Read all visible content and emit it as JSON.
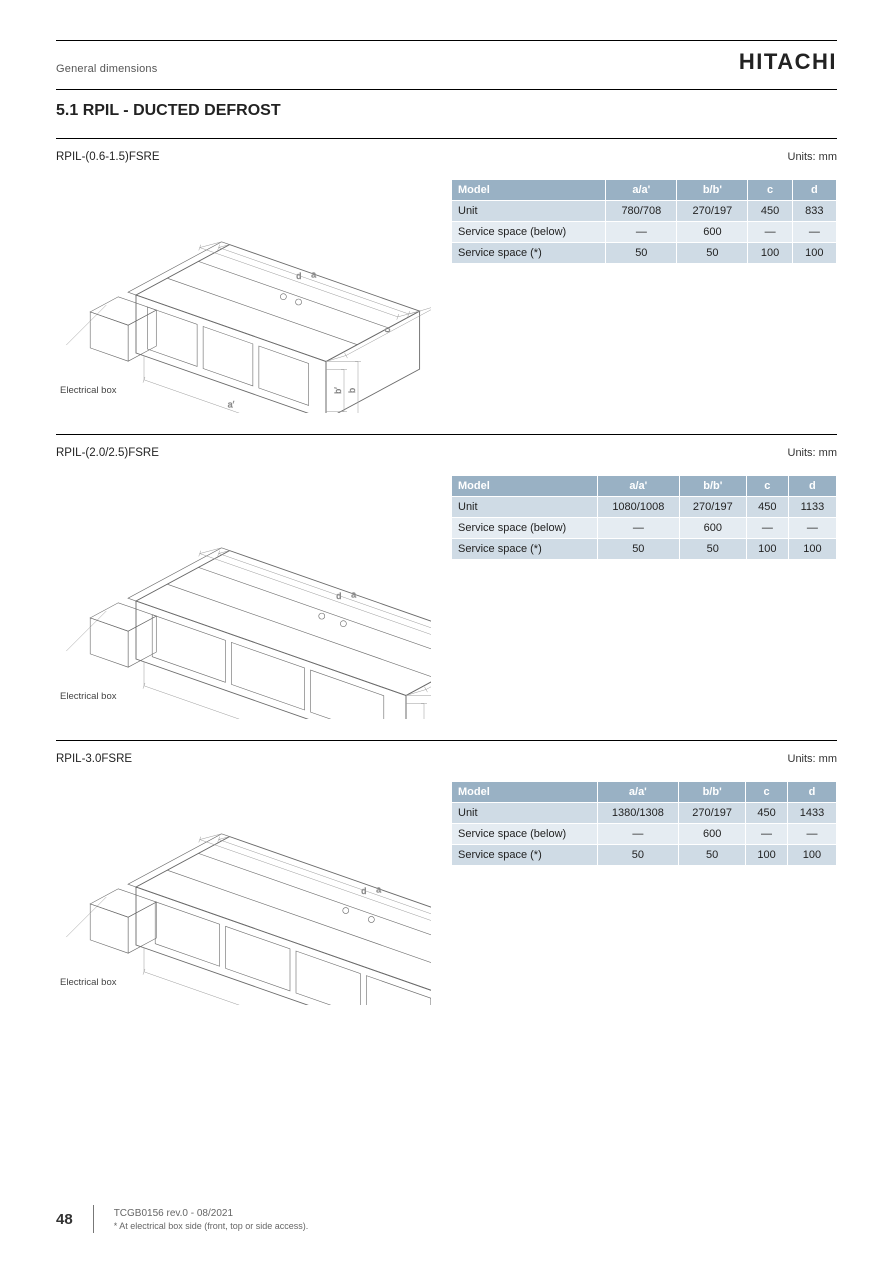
{
  "header": {
    "page_title": "General dimensions",
    "brand": "HITACHI"
  },
  "section_heading": "5.1 RPIL - DUCTED DEFROST",
  "ebox_label": "Electrical box",
  "units_label": "Units: mm",
  "dim_labels": {
    "a": "a",
    "a_prime": "a'",
    "b": "b",
    "b_prime": "b'",
    "c": "c",
    "d": "d"
  },
  "table_rows_header": [
    "Model",
    "a/a'",
    "b/b'",
    "c",
    "d"
  ],
  "table_row_labels": [
    "Unit",
    "Service space (below)",
    "Service space (*)"
  ],
  "blocks": [
    {
      "model": "RPIL-(0.6-1.5)FSRE",
      "rows": [
        [
          "780/708",
          "270/197",
          "450",
          "833"
        ],
        [
          "—",
          "600",
          "—",
          "—"
        ],
        [
          "50",
          "50",
          "100",
          "100"
        ]
      ],
      "svg_variant": "short"
    },
    {
      "model": "RPIL-(2.0/2.5)FSRE",
      "rows": [
        [
          "1080/1008",
          "270/197",
          "450",
          "1133"
        ],
        [
          "—",
          "600",
          "—",
          "—"
        ],
        [
          "50",
          "50",
          "100",
          "100"
        ]
      ],
      "svg_variant": "long"
    },
    {
      "model": "RPIL-3.0FSRE",
      "rows": [
        [
          "1380/1308",
          "270/197",
          "450",
          "1433"
        ],
        [
          "—",
          "600",
          "—",
          "—"
        ],
        [
          "50",
          "50",
          "100",
          "100"
        ]
      ],
      "svg_variant": "xlong"
    }
  ],
  "footer": {
    "page": "48",
    "doc_code": "TCGB0156 rev.0 - 08/2021",
    "note": "* At electrical box side (front, top or side access)."
  },
  "colors": {
    "header_bg": "#99b1c4",
    "row_even": "#cfdbe5",
    "row_odd": "#e5ecf2",
    "stroke": "#6a6a6a"
  }
}
